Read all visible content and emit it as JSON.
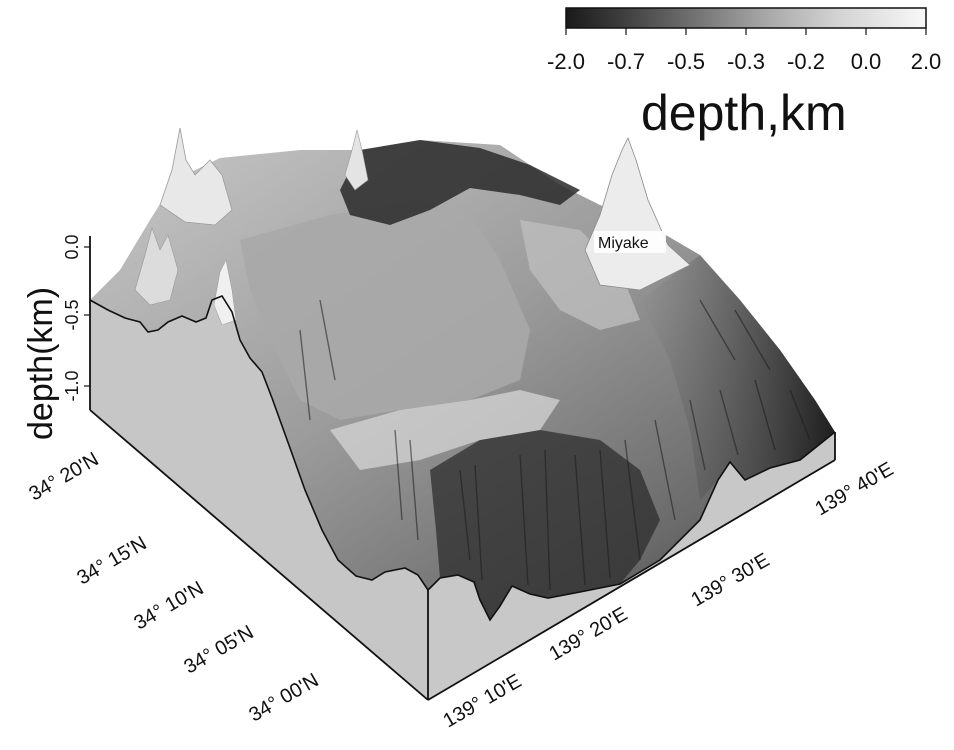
{
  "colorbar": {
    "tick_labels": [
      "-2.0",
      "-0.7",
      "-0.5",
      "-0.3",
      "-0.2",
      "0.0",
      "2.0"
    ],
    "title": "depth,km",
    "gradient_colors": [
      "#1a1a1a",
      "#4a4a4a",
      "#7a7a7a",
      "#a8a8a8",
      "#cfcfcf",
      "#ececec",
      "#ffffff"
    ]
  },
  "axes": {
    "z_label": "depth(km)",
    "z_ticks": [
      "0.0",
      "-0.5",
      "-1.0"
    ],
    "lat_ticks": [
      "34° 20'N",
      "34° 15'N",
      "34° 10'N",
      "34° 05'N",
      "34° 00'N"
    ],
    "lon_ticks": [
      "139° 10'E",
      "139° 20'E",
      "139° 30'E",
      "139° 40'E"
    ]
  },
  "annotation": {
    "label": "Miyake"
  },
  "colors": {
    "wall": "#c4c4c4",
    "frame": "#111111",
    "deep": "#1e1e1e",
    "shallow": "#f2f2f2"
  }
}
